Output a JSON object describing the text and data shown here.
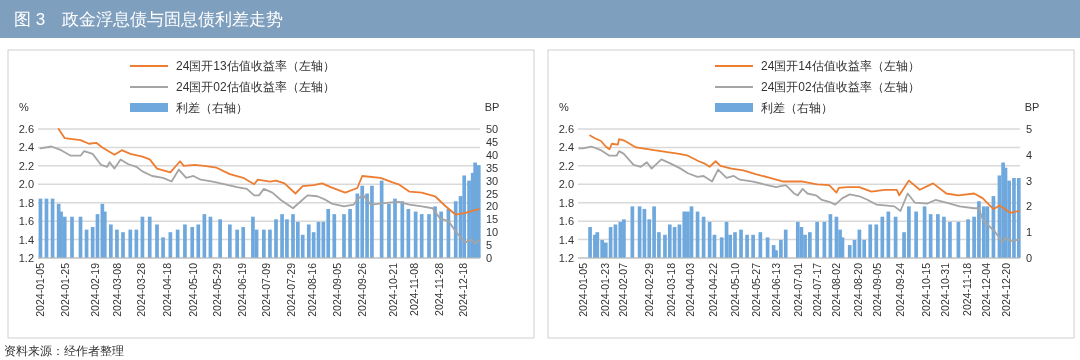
{
  "chart_data": [
    {
      "type": "line",
      "title": "图 3　政金浮息债与固息债利差走势",
      "ylabel": "%",
      "y2label": "BP",
      "annotations": [
        "资料来源：经作者整理"
      ],
      "grid": "y",
      "legend": "top",
      "xlim": [
        "2024-01-03",
        "2025-01-01"
      ],
      "xticks": [
        "2024-01-05",
        "2024-01-25",
        "2024-02-19",
        "2024-03-08",
        "2024-03-28",
        "2024-04-18",
        "2024-05-10",
        "2024-05-29",
        "2024-06-19",
        "2024-07-09",
        "2024-07-29",
        "2024-08-16",
        "2024-09-05",
        "2024-09-26",
        "2024-10-21",
        "2024-11-08",
        "2024-11-28",
        "2024-12-18"
      ],
      "ylim": [
        1.2,
        2.6
      ],
      "yticks": [
        1.2,
        1.4,
        1.6,
        1.8,
        {
          "value": 2,
          "label": "2.0"
        },
        2.2,
        2.4,
        2.6
      ],
      "y2lim": [
        0,
        50
      ],
      "y2ticks": [
        0,
        5,
        10,
        15,
        20,
        25,
        30,
        35,
        40,
        45,
        50
      ],
      "series": [
        {
          "name": "24国开13估值收益率（左轴）",
          "color": "#ed7d31",
          "x": [
            "2024-01-20",
            "2024-01-25",
            "2024-02-07",
            "2024-02-14",
            "2024-02-20",
            "2024-02-25",
            "2024-03-06",
            "2024-03-12",
            "2024-03-19",
            "2024-03-29",
            "2024-04-04",
            "2024-04-10",
            "2024-04-21",
            "2024-04-29",
            "2024-05-02",
            "2024-05-11",
            "2024-05-19",
            "2024-05-29",
            "2024-06-09",
            "2024-06-20",
            "2024-06-29",
            "2024-07-02",
            "2024-07-12",
            "2024-07-17",
            "2024-07-24",
            "2024-08-02",
            "2024-08-08",
            "2024-08-17",
            "2024-08-24",
            "2024-08-31",
            "2024-09-12",
            "2024-09-22",
            "2024-09-26",
            "2024-10-11",
            "2024-10-21",
            "2024-10-26",
            "2024-11-04",
            "2024-11-14",
            "2024-11-25",
            "2024-12-03",
            "2024-12-12",
            "2024-12-20",
            "2024-12-23",
            "2024-12-31"
          ],
          "values": [
            2.6,
            2.5,
            2.48,
            2.44,
            2.45,
            2.4,
            2.32,
            2.37,
            2.33,
            2.3,
            2.27,
            2.17,
            2.13,
            2.25,
            2.2,
            2.21,
            2.2,
            2.18,
            2.11,
            2.07,
            2.0,
            2.05,
            2.03,
            2.04,
            2.01,
            1.9,
            1.98,
            1.99,
            2.01,
            1.97,
            1.91,
            1.96,
            2.09,
            2.07,
            2.02,
            2.0,
            1.92,
            1.91,
            1.87,
            1.77,
            1.67,
            1.69,
            1.7,
            1.73
          ]
        },
        {
          "name": "24国开02估值收益率（左轴）",
          "color": "#a5a5a5",
          "x": [
            "2024-01-05",
            "2024-01-14",
            "2024-01-22",
            "2024-01-30",
            "2024-02-07",
            "2024-02-10",
            "2024-02-17",
            "2024-02-24",
            "2024-02-29",
            "2024-03-02",
            "2024-03-06",
            "2024-03-11",
            "2024-03-17",
            "2024-03-24",
            "2024-03-29",
            "2024-04-06",
            "2024-04-15",
            "2024-04-22",
            "2024-04-28",
            "2024-05-04",
            "2024-05-10",
            "2024-05-16",
            "2024-05-26",
            "2024-06-05",
            "2024-06-15",
            "2024-06-23",
            "2024-06-29",
            "2024-07-03",
            "2024-07-07",
            "2024-07-14",
            "2024-07-21",
            "2024-07-31",
            "2024-08-06",
            "2024-08-12",
            "2024-08-20",
            "2024-08-27",
            "2024-09-01",
            "2024-09-11",
            "2024-09-19",
            "2024-09-23",
            "2024-09-27",
            "2024-10-03",
            "2024-10-18",
            "2024-10-26",
            "2024-11-04",
            "2024-11-14",
            "2024-11-23",
            "2024-11-29",
            "2024-12-06",
            "2024-12-13",
            "2024-12-20",
            "2024-12-25",
            "2024-12-28",
            "2024-12-31"
          ],
          "values": [
            2.39,
            2.41,
            2.37,
            2.31,
            2.31,
            2.36,
            2.33,
            2.21,
            2.19,
            2.24,
            2.17,
            2.27,
            2.22,
            2.19,
            2.14,
            2.09,
            2.07,
            2.03,
            2.16,
            2.07,
            2.09,
            2.05,
            2.03,
            2.0,
            1.97,
            1.95,
            1.88,
            1.88,
            1.95,
            1.91,
            1.83,
            1.74,
            1.81,
            1.88,
            1.87,
            1.83,
            1.79,
            1.76,
            1.78,
            1.85,
            1.88,
            1.78,
            1.8,
            1.81,
            1.78,
            1.76,
            1.74,
            1.63,
            1.6,
            1.47,
            1.37,
            1.4,
            1.36,
            1.39
          ]
        },
        {
          "name": "利差（右轴）",
          "type": "bar",
          "axis": "y2",
          "color": "#6fa8dc",
          "x": [
            "2024-01-05",
            "2024-01-10",
            "2024-01-15",
            "2024-01-20",
            "2024-01-22",
            "2024-01-25",
            "2024-01-31",
            "2024-02-07",
            "2024-02-12",
            "2024-02-17",
            "2024-02-21",
            "2024-02-25",
            "2024-02-27",
            "2024-03-03",
            "2024-03-08",
            "2024-03-13",
            "2024-03-19",
            "2024-03-24",
            "2024-03-29",
            "2024-04-04",
            "2024-04-10",
            "2024-04-15",
            "2024-04-21",
            "2024-04-27",
            "2024-05-03",
            "2024-05-09",
            "2024-05-14",
            "2024-05-19",
            "2024-05-24",
            "2024-06-01",
            "2024-06-09",
            "2024-06-15",
            "2024-06-20",
            "2024-06-28",
            "2024-07-01",
            "2024-07-07",
            "2024-07-12",
            "2024-07-17",
            "2024-07-22",
            "2024-07-26",
            "2024-07-31",
            "2024-08-04",
            "2024-08-08",
            "2024-08-13",
            "2024-08-17",
            "2024-08-21",
            "2024-08-25",
            "2024-08-29",
            "2024-09-03",
            "2024-09-11",
            "2024-09-16",
            "2024-09-22",
            "2024-09-26",
            "2024-09-30",
            "2024-10-04",
            "2024-10-12",
            "2024-10-18",
            "2024-10-23",
            "2024-10-29",
            "2024-11-03",
            "2024-11-09",
            "2024-11-14",
            "2024-11-20",
            "2024-11-25",
            "2024-11-30",
            "2024-12-06",
            "2024-12-12",
            "2024-12-16",
            "2024-12-19",
            "2024-12-23",
            "2024-12-26",
            "2024-12-28",
            "2024-12-31"
          ],
          "values": [
            23,
            23,
            23,
            21,
            18,
            16,
            16,
            16,
            11,
            12,
            17,
            21,
            18,
            13,
            11,
            10,
            11,
            11,
            16,
            16,
            13,
            8,
            10,
            11,
            13,
            12,
            13,
            17,
            16,
            15,
            13,
            11,
            12,
            16,
            11,
            11,
            11,
            15,
            17,
            15,
            17,
            14,
            9,
            13,
            10,
            14,
            14,
            19,
            17,
            17,
            19,
            25,
            28,
            25,
            28,
            30,
            21,
            23,
            22,
            19,
            18,
            17,
            17,
            20,
            18,
            19,
            22,
            24,
            32,
            30,
            33,
            37,
            36
          ]
        }
      ]
    },
    {
      "type": "line",
      "ylabel": "%",
      "y2label": "BP",
      "grid": "y",
      "legend": "top",
      "xlim": [
        "2024-01-01",
        "2025-01-01"
      ],
      "xticks": [
        "2024-01-05",
        "2024-01-23",
        "2024-02-07",
        "2024-02-29",
        "2024-03-18",
        "2024-04-03",
        "2024-04-22",
        "2024-05-10",
        "2024-05-27",
        "2024-06-13",
        "2024-07-01",
        "2024-07-17",
        "2024-08-02",
        "2024-08-20",
        "2024-09-05",
        "2024-09-24",
        "2024-10-15",
        "2024-10-31",
        "2024-11-18",
        "2024-12-04",
        "2024-12-20"
      ],
      "ylim": [
        1.2,
        2.6
      ],
      "yticks": [
        1.2,
        1.4,
        1.6,
        1.8,
        {
          "value": 2,
          "label": "2.0"
        },
        2.2,
        2.4,
        2.6
      ],
      "y2lim": [
        0,
        5
      ],
      "y2ticks": [
        0,
        1,
        2,
        3,
        4,
        5
      ],
      "series": [
        {
          "name": "24国开14估值收益率（左轴）",
          "color": "#ed7d31",
          "x": [
            "2024-01-11",
            "2024-01-15",
            "2024-01-20",
            "2024-01-24",
            "2024-01-27",
            "2024-01-29",
            "2024-02-03",
            "2024-02-04",
            "2024-02-09",
            "2024-02-18",
            "2024-02-29",
            "2024-03-04",
            "2024-03-15",
            "2024-03-25",
            "2024-04-01",
            "2024-04-10",
            "2024-04-14",
            "2024-04-19",
            "2024-04-24",
            "2024-04-28",
            "2024-05-07",
            "2024-05-17",
            "2024-05-27",
            "2024-06-08",
            "2024-06-19",
            "2024-06-30",
            "2024-07-05",
            "2024-07-17",
            "2024-07-27",
            "2024-08-02",
            "2024-08-04",
            "2024-08-11",
            "2024-08-21",
            "2024-08-31",
            "2024-09-11",
            "2024-09-21",
            "2024-09-23",
            "2024-10-01",
            "2024-10-10",
            "2024-10-21",
            "2024-11-01",
            "2024-11-11",
            "2024-11-24",
            "2024-12-01",
            "2024-12-10",
            "2024-12-15",
            "2024-12-24",
            "2024-12-31"
          ],
          "values": [
            2.53,
            2.5,
            2.47,
            2.41,
            2.38,
            2.44,
            2.43,
            2.49,
            2.47,
            2.4,
            2.38,
            2.37,
            2.35,
            2.33,
            2.31,
            2.25,
            2.23,
            2.19,
            2.25,
            2.2,
            2.17,
            2.15,
            2.11,
            2.07,
            2.03,
            2.03,
            2.03,
            2.0,
            1.99,
            1.91,
            1.96,
            1.97,
            1.97,
            1.92,
            1.94,
            1.94,
            1.88,
            2.04,
            1.94,
            2.01,
            1.9,
            1.88,
            1.9,
            1.85,
            1.73,
            1.77,
            1.69,
            1.71
          ]
        },
        {
          "name": "24国开02估值收益率（左轴）",
          "color": "#a5a5a5",
          "x": [
            "2024-01-02",
            "2024-01-05",
            "2024-01-12",
            "2024-01-20",
            "2024-01-27",
            "2024-02-02",
            "2024-02-04",
            "2024-02-08",
            "2024-02-16",
            "2024-02-22",
            "2024-02-27",
            "2024-03-02",
            "2024-03-10",
            "2024-03-17",
            "2024-03-26",
            "2024-04-01",
            "2024-04-09",
            "2024-04-14",
            "2024-04-21",
            "2024-04-26",
            "2024-05-03",
            "2024-05-09",
            "2024-05-14",
            "2024-05-25",
            "2024-06-03",
            "2024-06-13",
            "2024-06-21",
            "2024-06-25",
            "2024-06-28",
            "2024-07-01",
            "2024-07-05",
            "2024-07-09",
            "2024-07-16",
            "2024-07-21",
            "2024-07-27",
            "2024-08-01",
            "2024-08-07",
            "2024-08-13",
            "2024-08-21",
            "2024-08-28",
            "2024-09-04",
            "2024-09-11",
            "2024-09-19",
            "2024-09-24",
            "2024-09-30",
            "2024-10-06",
            "2024-10-16",
            "2024-10-23",
            "2024-11-01",
            "2024-11-12",
            "2024-11-24",
            "2024-11-28",
            "2024-12-01",
            "2024-12-06",
            "2024-12-11",
            "2024-12-17",
            "2024-12-21",
            "2024-12-24",
            "2024-12-31"
          ],
          "values": [
            2.39,
            2.39,
            2.41,
            2.37,
            2.31,
            2.31,
            2.36,
            2.33,
            2.21,
            2.19,
            2.24,
            2.17,
            2.27,
            2.23,
            2.17,
            2.12,
            2.08,
            2.09,
            2.03,
            2.16,
            2.07,
            2.09,
            2.05,
            2.03,
            2.0,
            1.97,
            1.99,
            1.94,
            1.9,
            1.88,
            1.95,
            1.9,
            1.88,
            1.83,
            1.81,
            1.78,
            1.85,
            1.89,
            1.87,
            1.83,
            1.78,
            1.77,
            1.76,
            1.71,
            1.9,
            1.8,
            1.79,
            1.83,
            1.8,
            1.76,
            1.74,
            1.74,
            1.62,
            1.55,
            1.49,
            1.38,
            1.42,
            1.38,
            1.4
          ]
        },
        {
          "name": "利差（右轴）",
          "type": "bar",
          "axis": "y2",
          "color": "#6fa8dc",
          "x": [
            "2024-01-11",
            "2024-01-15",
            "2024-01-17",
            "2024-01-21",
            "2024-01-24",
            "2024-01-28",
            "2024-02-01",
            "2024-02-05",
            "2024-02-08",
            "2024-02-15",
            "2024-02-21",
            "2024-02-25",
            "2024-02-29",
            "2024-03-04",
            "2024-03-08",
            "2024-03-13",
            "2024-03-17",
            "2024-03-21",
            "2024-03-25",
            "2024-03-29",
            "2024-04-01",
            "2024-04-04",
            "2024-04-09",
            "2024-04-14",
            "2024-04-19",
            "2024-04-23",
            "2024-04-29",
            "2024-05-03",
            "2024-05-06",
            "2024-05-10",
            "2024-05-15",
            "2024-05-20",
            "2024-05-25",
            "2024-05-31",
            "2024-06-06",
            "2024-06-11",
            "2024-06-13",
            "2024-06-17",
            "2024-06-21",
            "2024-07-01",
            "2024-07-04",
            "2024-07-07",
            "2024-07-11",
            "2024-07-17",
            "2024-07-23",
            "2024-07-28",
            "2024-08-02",
            "2024-08-05",
            "2024-08-07",
            "2024-08-13",
            "2024-08-17",
            "2024-08-21",
            "2024-08-25",
            "2024-08-30",
            "2024-09-04",
            "2024-09-09",
            "2024-09-14",
            "2024-09-20",
            "2024-09-27",
            "2024-10-01",
            "2024-10-07",
            "2024-10-14",
            "2024-10-19",
            "2024-10-25",
            "2024-10-30",
            "2024-11-04",
            "2024-11-11",
            "2024-11-19",
            "2024-11-24",
            "2024-11-28",
            "2024-12-02",
            "2024-12-05",
            "2024-12-10",
            "2024-12-15",
            "2024-12-18",
            "2024-12-20",
            "2024-12-23",
            "2024-12-27",
            "2024-12-31"
          ],
          "values": [
            1.2,
            0.9,
            1.0,
            0.7,
            0.6,
            1.2,
            1.3,
            1.4,
            1.5,
            2.0,
            2.0,
            1.9,
            1.5,
            2.0,
            1.0,
            0.9,
            1.3,
            1.2,
            1.3,
            1.8,
            1.8,
            2.0,
            1.8,
            1.6,
            1.4,
            0.9,
            0.8,
            1.4,
            0.9,
            1.0,
            1.1,
            0.9,
            0.9,
            1.0,
            0.8,
            0.5,
            0.3,
            0.7,
            1.1,
            1.4,
            1.2,
            0.9,
            1.0,
            1.4,
            1.4,
            1.7,
            1.6,
            1.1,
            0.8,
            0.5,
            0.7,
            1.1,
            0.7,
            1.3,
            1.3,
            1.6,
            1.8,
            1.6,
            1.0,
            2.0,
            1.8,
            2.0,
            1.7,
            1.7,
            1.6,
            1.4,
            1.4,
            1.5,
            1.6,
            2.2,
            2.0,
            2.0,
            2.4,
            3.2,
            3.7,
            3.5,
            3.0,
            3.1,
            3.1
          ]
        }
      ]
    }
  ]
}
